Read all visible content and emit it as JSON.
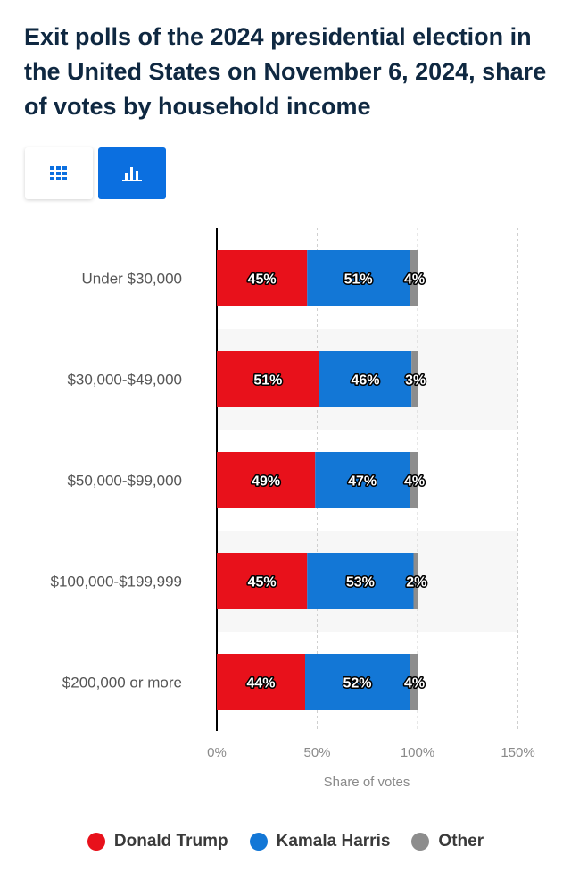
{
  "title": "Exit polls of the 2024 presidential election in the United States on November 6, 2024, share of votes by household income",
  "view_toggle": {
    "table_icon": "grid-icon",
    "chart_icon": "bar-chart-icon",
    "active": "chart"
  },
  "colors": {
    "trump": "#e8111b",
    "harris": "#1377d6",
    "other": "#8d8d8d",
    "active_toggle": "#0b6fe0"
  },
  "chart_data": {
    "type": "bar",
    "orientation": "horizontal",
    "stacked": true,
    "categories": [
      "Under $30,000",
      "$30,000-$49,000",
      "$50,000-$99,000",
      "$100,000-$199,999",
      "$200,000 or more"
    ],
    "series": [
      {
        "name": "Donald Trump",
        "values": [
          45,
          51,
          49,
          45,
          44
        ],
        "labels": [
          "45%",
          "51%",
          "49%",
          "45%",
          "44%"
        ]
      },
      {
        "name": "Kamala Harris",
        "values": [
          51,
          46,
          47,
          53,
          52
        ],
        "labels": [
          "51%",
          "46%",
          "47%",
          "53%",
          "52%"
        ]
      },
      {
        "name": "Other",
        "values": [
          4,
          3,
          4,
          2,
          4
        ],
        "labels": [
          "4%",
          "3%",
          "4%",
          "2%",
          "4%"
        ]
      }
    ],
    "xlabel": "Share of votes",
    "xlim": [
      0,
      150
    ],
    "xticks": [
      0,
      50,
      100,
      150
    ],
    "xtick_labels": [
      "0%",
      "50%",
      "100%",
      "150%"
    ],
    "grid": "vertical dashed",
    "legend_position": "bottom"
  }
}
